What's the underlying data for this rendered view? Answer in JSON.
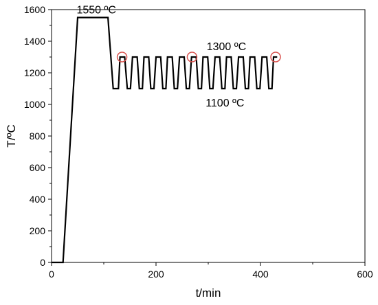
{
  "chart_data": {
    "type": "line",
    "title": "",
    "xlabel": "t/min",
    "ylabel": "T/ºC",
    "xlim": [
      0,
      600
    ],
    "ylim": [
      0,
      1600
    ],
    "x_ticks": [
      0,
      200,
      400,
      600
    ],
    "y_ticks": [
      0,
      200,
      400,
      600,
      800,
      1000,
      1200,
      1400,
      1600
    ],
    "grid": false,
    "series_color": "#000000",
    "marker_color": "#d9534f",
    "series": [
      {
        "x": [
          0,
          20,
          22,
          50,
          108,
          118,
          128,
          131,
          140,
          145,
          151,
          155,
          164,
          168,
          174,
          177,
          186,
          190,
          196,
          200,
          209,
          213,
          219,
          222,
          231,
          235,
          241,
          245,
          254,
          258,
          264,
          268,
          277,
          281,
          287,
          290,
          299,
          303,
          309,
          313,
          322,
          326,
          332,
          335,
          344,
          348,
          354,
          358,
          367,
          371,
          377,
          380,
          389,
          393,
          399,
          403,
          412,
          416,
          422,
          425,
          432
        ],
        "y": [
          0,
          0,
          0,
          1550,
          1550,
          1100,
          1100,
          1300,
          1300,
          1100,
          1100,
          1300,
          1300,
          1100,
          1100,
          1300,
          1300,
          1100,
          1100,
          1300,
          1300,
          1100,
          1100,
          1300,
          1300,
          1100,
          1100,
          1300,
          1300,
          1100,
          1100,
          1300,
          1300,
          1100,
          1100,
          1300,
          1300,
          1100,
          1100,
          1300,
          1300,
          1100,
          1100,
          1300,
          1300,
          1100,
          1100,
          1300,
          1300,
          1100,
          1100,
          1300,
          1300,
          1100,
          1100,
          1300,
          1300,
          1100,
          1100,
          1300,
          1300
        ]
      }
    ],
    "highlight_points": [
      {
        "x": 135,
        "y": 1300
      },
      {
        "x": 269,
        "y": 1300
      },
      {
        "x": 429,
        "y": 1300
      }
    ],
    "annotations": [
      {
        "text": "1550 ºC",
        "x": 48,
        "y": 1550
      },
      {
        "text": "1300 ºC",
        "x": 297,
        "y": 1300
      },
      {
        "text": "1100 ºC",
        "x": 295,
        "y": 1100
      }
    ]
  }
}
